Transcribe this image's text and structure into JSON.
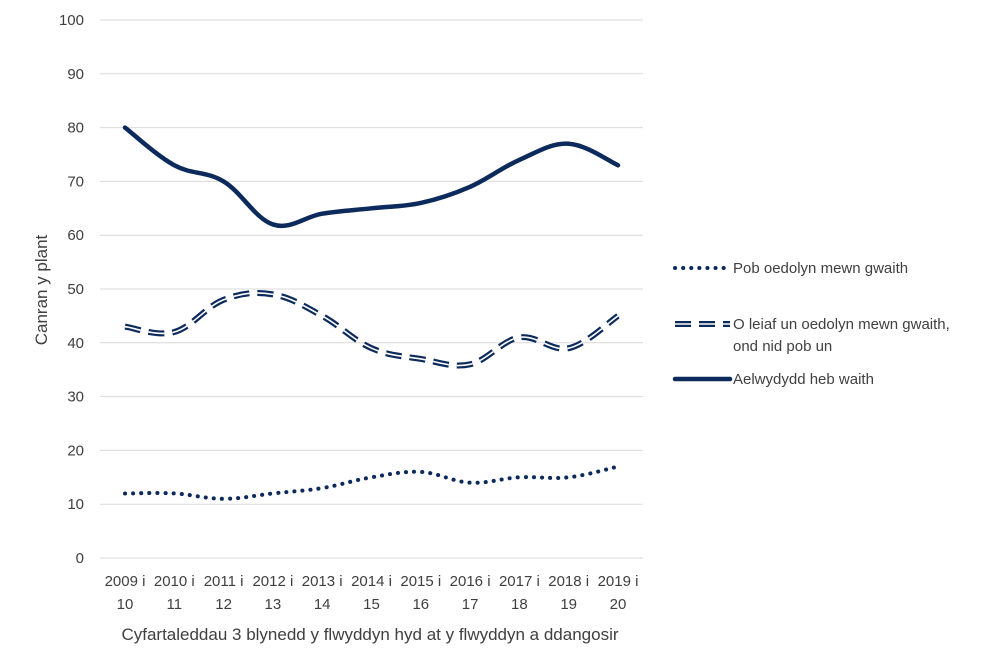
{
  "chart_data": {
    "type": "line",
    "title": "",
    "xlabel": "Cyfartaleddau 3 blynedd y flwyddyn hyd at y flwyddyn a ddangosir",
    "ylabel": "Canran y plant",
    "ylim": [
      0,
      100
    ],
    "yticks": [
      "0",
      "10",
      "20",
      "30",
      "40",
      "50",
      "60",
      "70",
      "80",
      "90",
      "100"
    ],
    "grid": true,
    "legend_position": "right",
    "categories": [
      [
        "2009 i",
        "10"
      ],
      [
        "2010 i",
        "11"
      ],
      [
        "2011 i",
        "12"
      ],
      [
        "2012 i",
        "13"
      ],
      [
        "2013 i",
        "14"
      ],
      [
        "2014 i",
        "15"
      ],
      [
        "2015 i",
        "16"
      ],
      [
        "2016 i",
        "17"
      ],
      [
        "2017 i",
        "18"
      ],
      [
        "2018 i",
        "19"
      ],
      [
        "2019 i",
        "20"
      ]
    ],
    "series": [
      {
        "name": "Pob oedolyn mewn gwaith",
        "name_lines": [
          "Pob oedolyn mewn gwaith"
        ],
        "style": "dotted",
        "values": [
          12,
          12,
          11,
          12,
          13,
          15,
          16,
          14,
          15,
          15,
          17
        ]
      },
      {
        "name": "O leiaf un oedolyn mewn gwaith, ond nid pob un",
        "name_lines": [
          "O leiaf un oedolyn mewn gwaith,",
          "ond nid pob un"
        ],
        "style": "dashed-double",
        "values": [
          43,
          42,
          48,
          49,
          45,
          39,
          37,
          36,
          41,
          39,
          45
        ]
      },
      {
        "name": "Aelwydydd heb waith",
        "name_lines": [
          "Aelwydydd heb waith"
        ],
        "style": "solid",
        "values": [
          80,
          73,
          70,
          62,
          64,
          65,
          66,
          69,
          74,
          77,
          73
        ]
      }
    ],
    "colors": {
      "series": "#0c2a5b",
      "grid": "#d9d9d9",
      "text": "#404040"
    }
  }
}
